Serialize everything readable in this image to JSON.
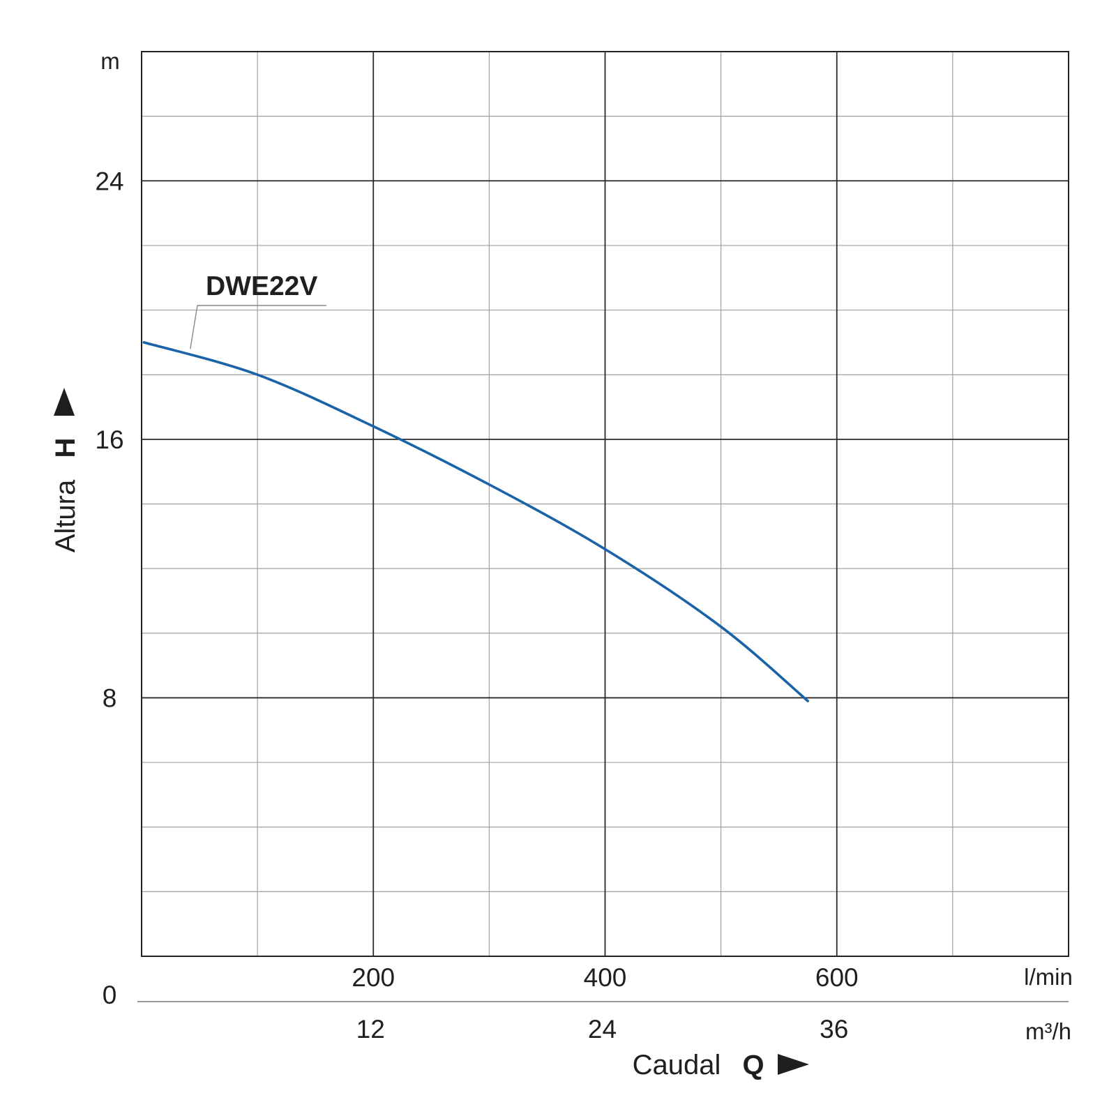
{
  "chart_data": {
    "type": "line",
    "grid": true,
    "y_axis": {
      "title": "Altura",
      "symbol": "H",
      "unit": "m",
      "range": [
        0,
        28
      ],
      "ticks": [
        0,
        8,
        16,
        24
      ],
      "tick_labels": [
        "0",
        "8",
        "16",
        "24"
      ],
      "minor_step": 2,
      "major_step": 8
    },
    "x_axis": {
      "title": "Caudal",
      "symbol": "Q",
      "unit": "l/min",
      "range": [
        0,
        800
      ],
      "ticks": [
        200,
        400,
        600
      ],
      "tick_labels": [
        "200",
        "400",
        "600"
      ],
      "minor_step": 100,
      "major_step": 200,
      "secondary": {
        "unit": "m³/h",
        "ticks": [
          12,
          24,
          36
        ],
        "tick_labels": [
          "12",
          "24",
          "36"
        ]
      }
    },
    "series": [
      {
        "name": "DWE22V",
        "color": "#1a63a8",
        "x": [
          2,
          100,
          200,
          300,
          400,
          500,
          575
        ],
        "y": [
          19.0,
          18.0,
          16.4,
          14.6,
          12.6,
          10.2,
          7.9
        ]
      }
    ]
  }
}
